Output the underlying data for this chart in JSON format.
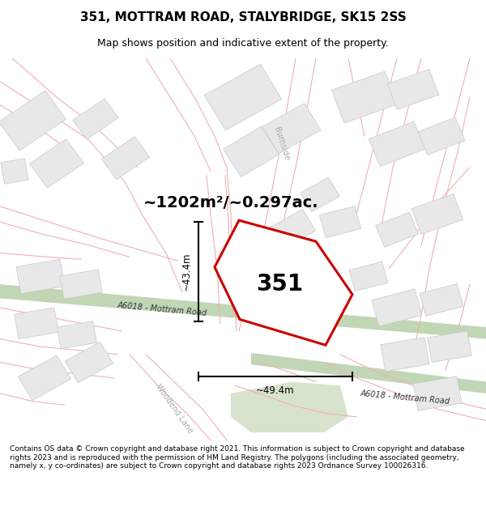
{
  "title": "351, MOTTRAM ROAD, STALYBRIDGE, SK15 2SS",
  "subtitle": "Map shows position and indicative extent of the property.",
  "footer": "Contains OS data © Crown copyright and database right 2021. This information is subject to Crown copyright and database rights 2023 and is reproduced with the permission of HM Land Registry. The polygons (including the associated geometry, namely x, y co-ordinates) are subject to Crown copyright and database rights 2023 Ordnance Survey 100026316.",
  "area_label": "~1202m²/~0.297ac.",
  "plot_number": "351",
  "dim_vertical": "~43.4m",
  "dim_horizontal": "~49.4m",
  "map_bg": "#ffffff",
  "road_color_green": "#b5cfa8",
  "plot_outline_color": "#cc0000",
  "street_line_color": "#f0b0b0",
  "building_fill": "#e8e8e8",
  "building_edge": "#c8c8c8",
  "road_label_color": "#555555",
  "burnside_label": "Burnside",
  "woodend_label": "Woodend Lane",
  "road_label_main1": "A6018 - Mottram Road",
  "road_label_main2": "A6018 - Mottram Road"
}
